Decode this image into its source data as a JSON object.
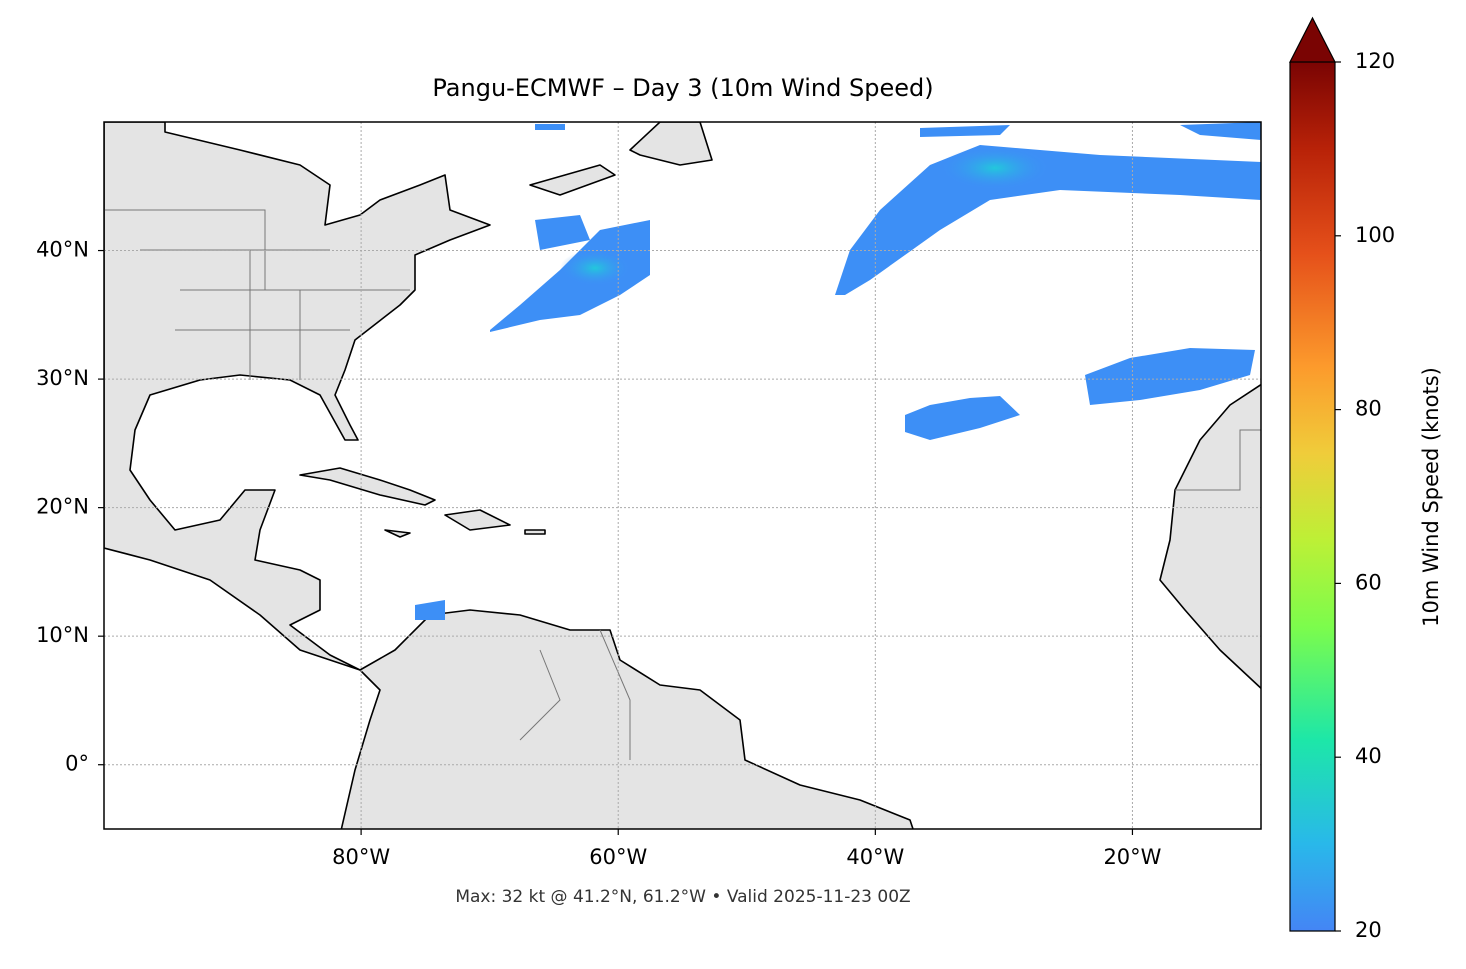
{
  "chart_data": {
    "type": "map",
    "title": "Pangu-ECMWF – Day 3 (10m Wind Speed)",
    "annotation": "Max: 32 kt @ 41.2°N, 61.2°W • Valid 2025-11-23 00Z",
    "xlim": [
      -100,
      -10
    ],
    "ylim": [
      -5,
      50
    ],
    "xticks": [
      {
        "value": -80,
        "label": "80°W"
      },
      {
        "value": -60,
        "label": "60°W"
      },
      {
        "value": -40,
        "label": "40°W"
      },
      {
        "value": -20,
        "label": "20°W"
      }
    ],
    "yticks": [
      {
        "value": 0,
        "label": "0°"
      },
      {
        "value": 10,
        "label": "10°N"
      },
      {
        "value": 20,
        "label": "20°N"
      },
      {
        "value": 30,
        "label": "30°N"
      },
      {
        "value": 40,
        "label": "40°N"
      }
    ],
    "grid": true,
    "colorbar": {
      "label": "10m Wind Speed (knots)",
      "lim": [
        20,
        120
      ],
      "ticks": [
        20,
        40,
        60,
        80,
        100,
        120
      ]
    }
  }
}
